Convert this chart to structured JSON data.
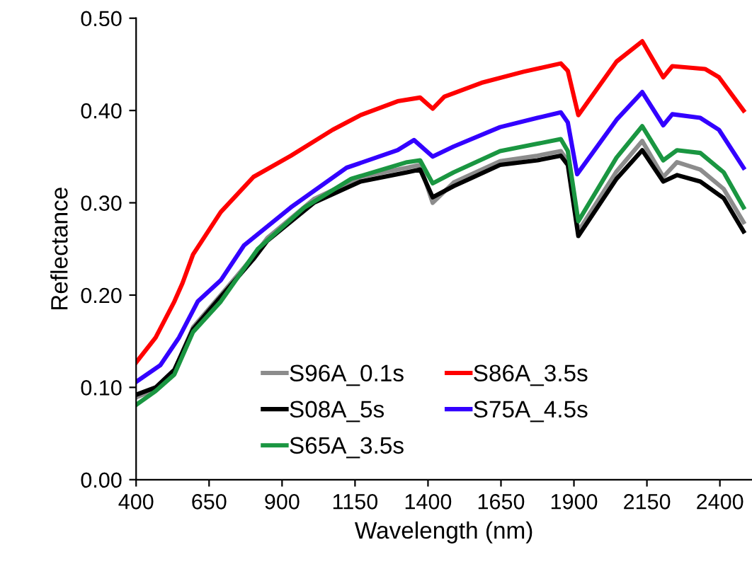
{
  "chart_data": {
    "type": "line",
    "xlabel": "Wavelength (nm)",
    "ylabel": "Reflectance",
    "xlim": [
      400,
      2510
    ],
    "xticks": [
      400,
      650,
      900,
      1150,
      1400,
      1650,
      1900,
      2150,
      2400
    ],
    "ylim": [
      0,
      0.5
    ],
    "yticks": [
      {
        "value": 0,
        "label": "0.00"
      },
      {
        "value": 0.1,
        "label": "0.10"
      },
      {
        "value": 0.2,
        "label": "0.20"
      },
      {
        "value": 0.3,
        "label": "0.30"
      },
      {
        "value": 0.4,
        "label": "0.40"
      },
      {
        "value": 0.5,
        "label": "0.50"
      }
    ],
    "grid": false,
    "legend": "bottom",
    "marker": "none",
    "line_style": "solid",
    "series": [
      {
        "name": "S96A_0.1s",
        "color": "#8c8c8c",
        "x": [
          400,
          467,
          531,
          595,
          690,
          802,
          850,
          1009,
          1169,
          1328,
          1373,
          1416,
          1488,
          1647,
          1775,
          1855,
          1879,
          1915,
          2046,
          2134,
          2206,
          2253,
          2333,
          2413,
          2481
        ],
        "values": [
          0.089,
          0.098,
          0.118,
          0.165,
          0.2,
          0.242,
          0.262,
          0.304,
          0.328,
          0.338,
          0.341,
          0.3,
          0.322,
          0.345,
          0.351,
          0.356,
          0.345,
          0.269,
          0.334,
          0.367,
          0.328,
          0.344,
          0.336,
          0.315,
          0.279
        ]
      },
      {
        "name": "S08A_5s",
        "color": "#000000",
        "x": [
          400,
          467,
          531,
          595,
          690,
          802,
          850,
          1009,
          1169,
          1328,
          1373,
          1416,
          1488,
          1647,
          1775,
          1855,
          1879,
          1915,
          2046,
          2134,
          2206,
          2253,
          2333,
          2413,
          2481
        ],
        "values": [
          0.092,
          0.1,
          0.119,
          0.163,
          0.198,
          0.239,
          0.259,
          0.3,
          0.323,
          0.333,
          0.336,
          0.306,
          0.318,
          0.341,
          0.346,
          0.351,
          0.341,
          0.264,
          0.326,
          0.357,
          0.323,
          0.33,
          0.323,
          0.305,
          0.269
        ]
      },
      {
        "name": "S65A_3.5s",
        "color": "#1a9641",
        "x": [
          400,
          467,
          531,
          595,
          690,
          817,
          977,
          1137,
          1328,
          1373,
          1416,
          1488,
          1647,
          1775,
          1855,
          1879,
          1915,
          2046,
          2134,
          2206,
          2253,
          2333,
          2413,
          2481
        ],
        "values": [
          0.081,
          0.096,
          0.114,
          0.16,
          0.193,
          0.25,
          0.295,
          0.326,
          0.344,
          0.346,
          0.321,
          0.333,
          0.356,
          0.364,
          0.369,
          0.356,
          0.28,
          0.349,
          0.383,
          0.346,
          0.357,
          0.354,
          0.333,
          0.295
        ]
      },
      {
        "name": "S86A_3.5s",
        "color": "#ff0000",
        "x": [
          400,
          467,
          531,
          559,
          595,
          690,
          802,
          930,
          1073,
          1169,
          1296,
          1373,
          1416,
          1456,
          1583,
          1727,
          1855,
          1879,
          1915,
          2046,
          2134,
          2206,
          2237,
          2349,
          2397,
          2481
        ],
        "values": [
          0.127,
          0.154,
          0.193,
          0.213,
          0.244,
          0.29,
          0.328,
          0.351,
          0.379,
          0.395,
          0.41,
          0.414,
          0.402,
          0.415,
          0.43,
          0.442,
          0.451,
          0.443,
          0.395,
          0.453,
          0.475,
          0.436,
          0.448,
          0.445,
          0.436,
          0.4
        ]
      },
      {
        "name": "S75A_4.5s",
        "color": "#3300ff",
        "x": [
          400,
          483,
          547,
          611,
          690,
          770,
          930,
          1121,
          1296,
          1352,
          1416,
          1488,
          1647,
          1775,
          1855,
          1879,
          1911,
          2046,
          2134,
          2206,
          2237,
          2333,
          2397,
          2481
        ],
        "values": [
          0.106,
          0.124,
          0.154,
          0.193,
          0.216,
          0.254,
          0.295,
          0.338,
          0.357,
          0.368,
          0.35,
          0.361,
          0.382,
          0.392,
          0.398,
          0.387,
          0.331,
          0.39,
          0.42,
          0.384,
          0.396,
          0.392,
          0.379,
          0.338
        ]
      }
    ]
  }
}
